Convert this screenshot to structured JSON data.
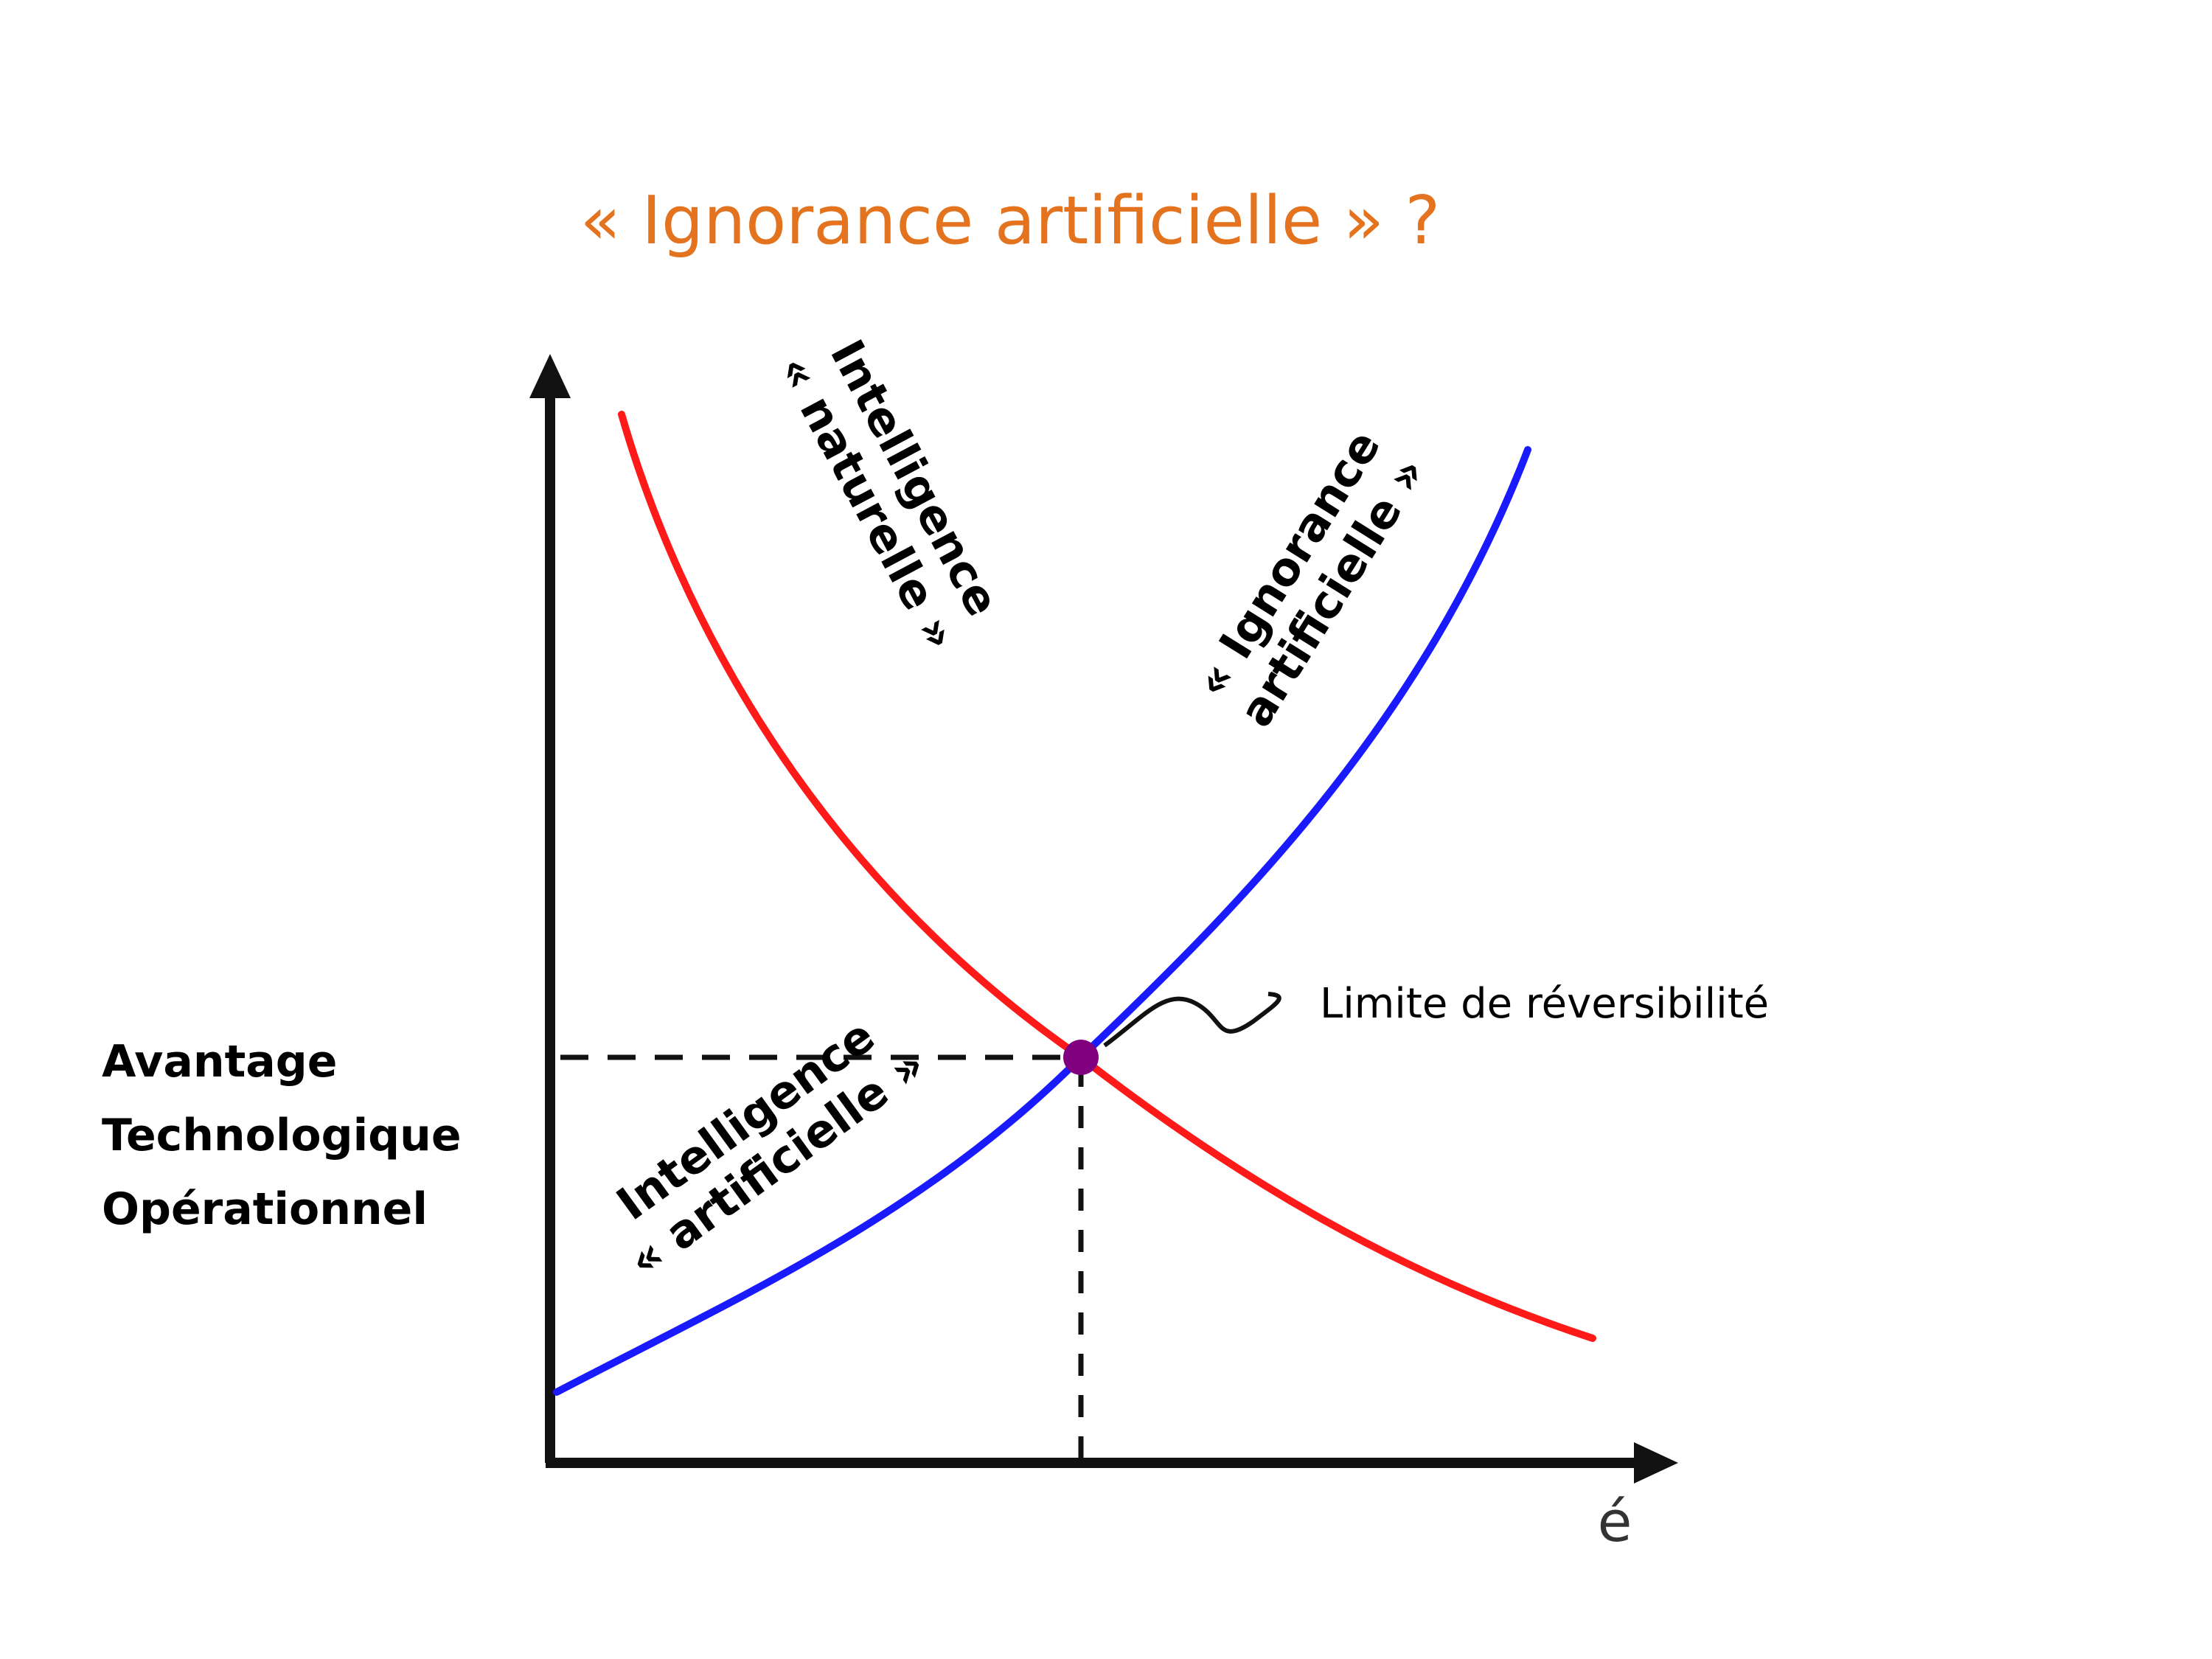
{
  "title": "« Ignorance artificielle » ?",
  "y_axis_label": [
    "Avantage",
    "Technologique",
    "Opérationnel"
  ],
  "x_axis_label": "é",
  "curve_natural": {
    "lines": [
      "Intelligence",
      "« naturelle »"
    ],
    "color": "#ff1a1a"
  },
  "curve_artificial_intelligence": {
    "lines": [
      "Intelligence",
      "« artificielle »"
    ],
    "color": "#1a1aff"
  },
  "curve_artificial_ignorance": {
    "lines": [
      "« Ignorance",
      "artificielle »"
    ]
  },
  "intersection": {
    "label": "Limite de réversibilité",
    "color": "#800080"
  },
  "colors": {
    "title": "#e3731e",
    "axis": "#111111"
  }
}
